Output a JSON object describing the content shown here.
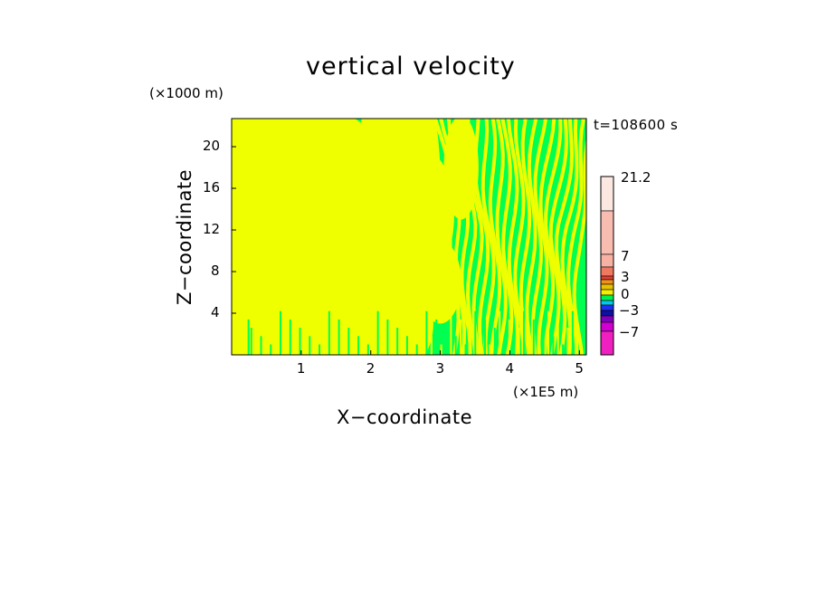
{
  "chart_data": {
    "type": "heatmap",
    "title": "vertical velocity",
    "xlabel": "X−coordinate",
    "ylabel": "Z−coordinate",
    "x_unit_label": "(×1E5 m)",
    "y_unit_label": "(×1000 m)",
    "time_label": "t=108600 s",
    "x_ticks": [
      "1",
      "2",
      "3",
      "4",
      "5"
    ],
    "y_ticks": [
      "20",
      "16",
      "12",
      "8",
      "4"
    ],
    "xlim": [
      0,
      5.1
    ],
    "ylim": [
      0,
      22.7
    ],
    "colorbar": {
      "labels": [
        "21.2",
        "7",
        "3",
        "0",
        "−3",
        "−7"
      ],
      "colors": [
        "#fce8e0",
        "#f8bcb0",
        "#f8b2a4",
        "#ee7860",
        "#e04030",
        "#f09020",
        "#e8c000",
        "#f0f000",
        "#00f050",
        "#00c8f0",
        "#2030f0",
        "#1010a0",
        "#8000c0",
        "#d000d0",
        "#f020c0"
      ]
    },
    "dominant_colors": {
      "positive": "#f0ff00",
      "negative": "#00ff50"
    }
  }
}
